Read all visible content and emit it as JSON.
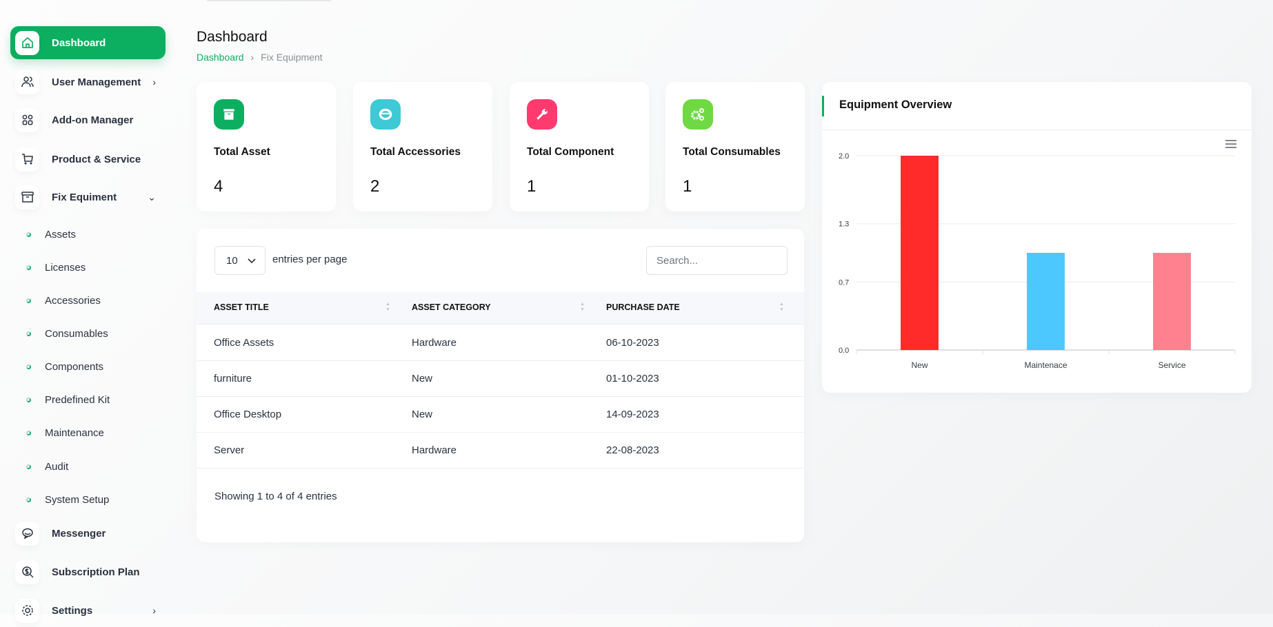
{
  "sidebar": {
    "items": [
      {
        "label": "Dashboard",
        "icon": "home-icon",
        "active": true
      },
      {
        "label": "User Management",
        "icon": "users-icon",
        "chevron": "right"
      },
      {
        "label": "Add-on Manager",
        "icon": "apps-icon"
      },
      {
        "label": "Product & Service",
        "icon": "cart-icon"
      },
      {
        "label": "Fix Equiment",
        "icon": "archive-icon",
        "chevron": "down"
      }
    ],
    "sub_items": [
      "Assets",
      "Licenses",
      "Accessories",
      "Consumables",
      "Components",
      "Predefined Kit",
      "Maintenance",
      "Audit",
      "System Setup"
    ],
    "bottom_items": [
      {
        "label": "Messenger",
        "icon": "chat-icon"
      },
      {
        "label": "Subscription Plan",
        "icon": "subscription-search-icon"
      },
      {
        "label": "Settings",
        "icon": "gear-icon",
        "chevron": "right"
      }
    ]
  },
  "header": {
    "title": "Dashboard",
    "breadcrumb": [
      "Dashboard",
      "Fix Equipment"
    ]
  },
  "stats": [
    {
      "label": "Total Asset",
      "value": "4",
      "icon": "archive-icon",
      "color": "#0caf60"
    },
    {
      "label": "Total Accessories",
      "value": "2",
      "icon": "ring-icon",
      "color": "#3ec9d6"
    },
    {
      "label": "Total Component",
      "value": "1",
      "icon": "wrench-icon",
      "color": "#ff3a6e"
    },
    {
      "label": "Total Consumables",
      "value": "1",
      "icon": "gears-icon",
      "color": "#6fd943"
    }
  ],
  "table": {
    "entries_value": "10",
    "entries_label": "entries per page",
    "search_placeholder": "Search...",
    "columns": [
      "ASSET TITLE",
      "ASSET CATEGORY",
      "PURCHASE DATE"
    ],
    "rows": [
      [
        "Office Assets",
        "Hardware",
        "06-10-2023"
      ],
      [
        "furniture",
        "New",
        "01-10-2023"
      ],
      [
        "Office Desktop",
        "New",
        "14-09-2023"
      ],
      [
        "Server",
        "Hardware",
        "22-08-2023"
      ]
    ],
    "footer": "Showing 1 to 4 of 4 entries"
  },
  "overview": {
    "title": "Equipment Overview",
    "menu_icon": "hamburger-menu-icon"
  },
  "chart_data": {
    "type": "bar",
    "categories": [
      "New",
      "Maintenace",
      "Service"
    ],
    "values": [
      2,
      1,
      1
    ],
    "colors": [
      "#ff2a2a",
      "#4dc8ff",
      "#ff808f"
    ],
    "yticks": [
      "0.0",
      "0.7",
      "1.3",
      "2.0"
    ],
    "ylim": [
      0,
      2
    ],
    "grid": true
  },
  "accent": "#0caf60"
}
